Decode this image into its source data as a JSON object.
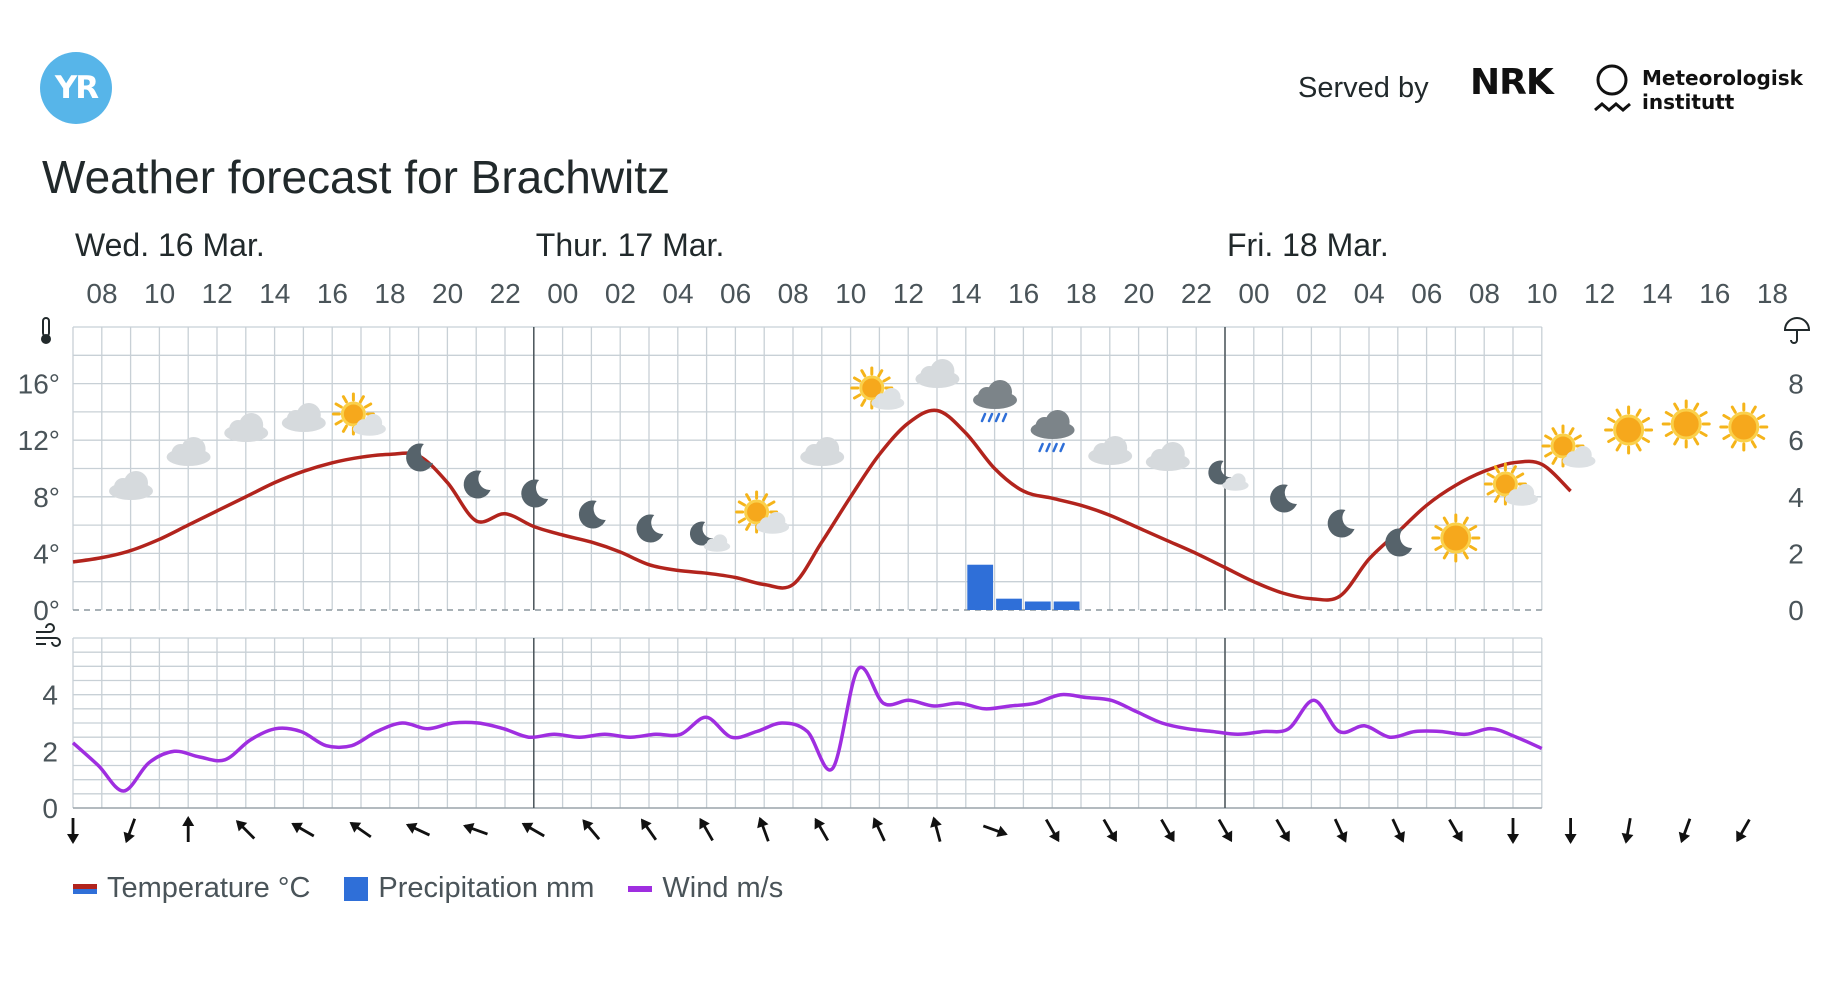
{
  "header": {
    "logo_text": "YR",
    "served_by": "Served by",
    "nrk": "NRK",
    "met_line1": "Meteorologisk",
    "met_line2": "institutt"
  },
  "title": "Weather forecast for Brachwitz",
  "colors": {
    "temperature": "#b2241d",
    "precipitation": "#2f6fd8",
    "wind": "#9f2ee0",
    "grid": "#c8d0d6",
    "logo": "#57b5e9"
  },
  "legend": [
    {
      "label": "Temperature °C",
      "color": "#b2241d"
    },
    {
      "label": "Precipitation mm",
      "color": "#2f6fd8"
    },
    {
      "label": "Wind m/s",
      "color": "#9f2ee0"
    }
  ],
  "chart_data": {
    "type": "line",
    "days": [
      {
        "label": "Wed. 16 Mar.",
        "start_hour": 0
      },
      {
        "label": "Thur. 17 Mar.",
        "start_hour": 16
      },
      {
        "label": "Fri. 18 Mar.",
        "start_hour": 40
      }
    ],
    "x_tick_labels": [
      "08",
      "10",
      "12",
      "14",
      "16",
      "18",
      "20",
      "22",
      "00",
      "02",
      "04",
      "06",
      "08",
      "10",
      "12",
      "14",
      "16",
      "18",
      "20",
      "22",
      "00",
      "02",
      "04",
      "06",
      "08",
      "10",
      "12",
      "14",
      "16",
      "18"
    ],
    "temperature_axis": {
      "ticks": [
        "0°",
        "4°",
        "8°",
        "12°",
        "16°"
      ],
      "ylim": [
        0,
        20
      ]
    },
    "precipitation_axis": {
      "ticks": [
        "0",
        "2",
        "4",
        "6",
        "8"
      ],
      "ylim": [
        0,
        10
      ]
    },
    "wind_axis": {
      "ticks": [
        "0",
        "2",
        "4"
      ],
      "ylim": [
        0,
        6
      ]
    },
    "temperature": [
      3.4,
      3.7,
      4.2,
      5.0,
      6.0,
      7.0,
      8.0,
      9.0,
      9.8,
      10.4,
      10.8,
      11.0,
      10.9,
      9.0,
      6.3,
      6.8,
      5.9,
      5.3,
      4.8,
      4.1,
      3.2,
      2.8,
      2.6,
      2.3,
      1.8,
      1.8,
      4.8,
      8.0,
      11.0,
      13.2,
      14.1,
      12.5,
      10.0,
      8.4,
      7.9,
      7.4,
      6.7,
      5.8,
      4.9,
      4.0,
      3.0,
      2.0,
      1.2,
      0.8,
      1.0,
      3.6,
      5.5,
      7.4,
      8.8,
      9.8,
      10.4,
      10.3,
      8.4
    ],
    "precipitation": [
      {
        "hour": 31,
        "value": 1.6
      },
      {
        "hour": 32,
        "value": 0.4
      },
      {
        "hour": 33,
        "value": 0.3
      },
      {
        "hour": 34,
        "value": 0.3
      }
    ],
    "wind": [
      2.3,
      1.5,
      0.6,
      1.6,
      2.0,
      1.8,
      1.7,
      2.4,
      2.8,
      2.7,
      2.2,
      2.2,
      2.7,
      3.0,
      2.8,
      3.0,
      3.0,
      2.8,
      2.5,
      2.6,
      2.5,
      2.6,
      2.5,
      2.6,
      2.6,
      3.2,
      2.5,
      2.7,
      3.0,
      2.7,
      1.4,
      4.9,
      3.7,
      3.8,
      3.6,
      3.7,
      3.5,
      3.6,
      3.7,
      4.0,
      3.9,
      3.8,
      3.4,
      3.0,
      2.8,
      2.7,
      2.6,
      2.7,
      2.8,
      3.8,
      2.7,
      2.9,
      2.5,
      2.7,
      2.7,
      2.6,
      2.8,
      2.5,
      2.1
    ],
    "weather_symbols": [
      "cloud",
      "cloud",
      "cloud",
      "cloud",
      "sun-cloud",
      "moon",
      "moon",
      "moon",
      "moon",
      "moon",
      "moon-cloud",
      "sun-cloud",
      "cloud",
      "sun-cloud",
      "cloud",
      "rain",
      "rain",
      "cloud",
      "cloud",
      "moon-cloud",
      "moon",
      "moon",
      "moon",
      "sun",
      "sun-cloud",
      "sun-cloud",
      "sun",
      "sun",
      "sun"
    ],
    "wind_arrow_directions_deg": [
      0,
      20,
      180,
      135,
      120,
      125,
      115,
      110,
      120,
      140,
      145,
      150,
      160,
      150,
      155,
      165,
      290,
      330,
      330,
      330,
      330,
      330,
      335,
      335,
      330,
      0,
      0,
      10,
      20,
      30
    ]
  }
}
